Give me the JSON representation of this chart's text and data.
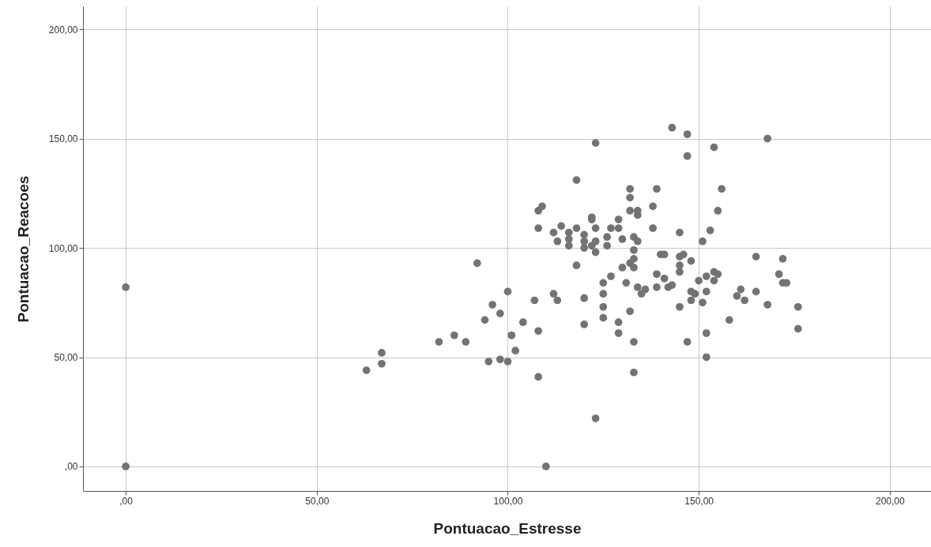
{
  "chart_data": {
    "type": "scatter",
    "xlabel": "Pontuacao_Estresse",
    "ylabel": "Pontuacao_Reacoes",
    "x": [
      0,
      0,
      63,
      67,
      67,
      82,
      86,
      89,
      92,
      94,
      95,
      96,
      98,
      98,
      100,
      100,
      101,
      102,
      104,
      107,
      108,
      108,
      110,
      108,
      109,
      108,
      112,
      112,
      113,
      113,
      114,
      116,
      116,
      116,
      118,
      118,
      118,
      120,
      120,
      120,
      120,
      120,
      122,
      122,
      122,
      123,
      123,
      123,
      123,
      123,
      125,
      125,
      125,
      125,
      126,
      126,
      127,
      127,
      129,
      129,
      129,
      129,
      130,
      130,
      131,
      132,
      132,
      132,
      132,
      132,
      133,
      133,
      133,
      133,
      133,
      133,
      134,
      134,
      134,
      134,
      135,
      136,
      138,
      138,
      139,
      139,
      139,
      140,
      141,
      141,
      142,
      143,
      143,
      145,
      145,
      145,
      145,
      145,
      146,
      147,
      147,
      147,
      148,
      148,
      149,
      148,
      150,
      151,
      151,
      152,
      152,
      152,
      152,
      153,
      154,
      154,
      155,
      154,
      155,
      156,
      158,
      160,
      161,
      162,
      165,
      165,
      168,
      168,
      171,
      172,
      172,
      173,
      176,
      176
    ],
    "values": [
      82,
      0,
      44,
      52,
      47,
      57,
      60,
      57,
      93,
      67,
      48,
      74,
      70,
      49,
      80,
      48,
      60,
      53,
      66,
      76,
      62,
      41,
      0,
      117,
      119,
      109,
      107,
      79,
      76,
      103,
      110,
      107,
      104,
      101,
      131,
      109,
      92,
      106,
      103,
      100,
      77,
      65,
      114,
      113,
      101,
      148,
      109,
      103,
      98,
      22,
      84,
      79,
      73,
      68,
      105,
      101,
      109,
      87,
      113,
      109,
      66,
      61,
      104,
      91,
      84,
      127,
      123,
      117,
      93,
      71,
      105,
      99,
      95,
      91,
      57,
      43,
      117,
      115,
      103,
      82,
      79,
      81,
      119,
      109,
      127,
      88,
      82,
      97,
      97,
      86,
      82,
      83,
      155,
      107,
      96,
      92,
      89,
      73,
      97,
      152,
      142,
      57,
      94,
      80,
      79,
      76,
      85,
      103,
      75,
      87,
      80,
      61,
      50,
      108,
      146,
      89,
      88,
      85,
      117,
      127,
      67,
      78,
      81,
      76,
      96,
      80,
      74,
      150,
      88,
      95,
      84,
      84,
      73,
      63
    ],
    "color": "#737373",
    "marker": "circle",
    "grid": true,
    "xlim": [
      -11.2,
      210.8
    ],
    "ylim": [
      -11.2,
      210.5
    ],
    "xticks": [
      {
        "value": 0,
        "label": ",00"
      },
      {
        "value": 50,
        "label": "50,00"
      },
      {
        "value": 100,
        "label": "100,00"
      },
      {
        "value": 150,
        "label": "150,00"
      },
      {
        "value": 200,
        "label": "200,00"
      }
    ],
    "yticks": [
      {
        "value": 0,
        "label": ",00"
      },
      {
        "value": 50,
        "label": "50,00"
      },
      {
        "value": 100,
        "label": "100,00"
      },
      {
        "value": 150,
        "label": "150,00"
      },
      {
        "value": 200,
        "label": "200,00"
      }
    ]
  }
}
